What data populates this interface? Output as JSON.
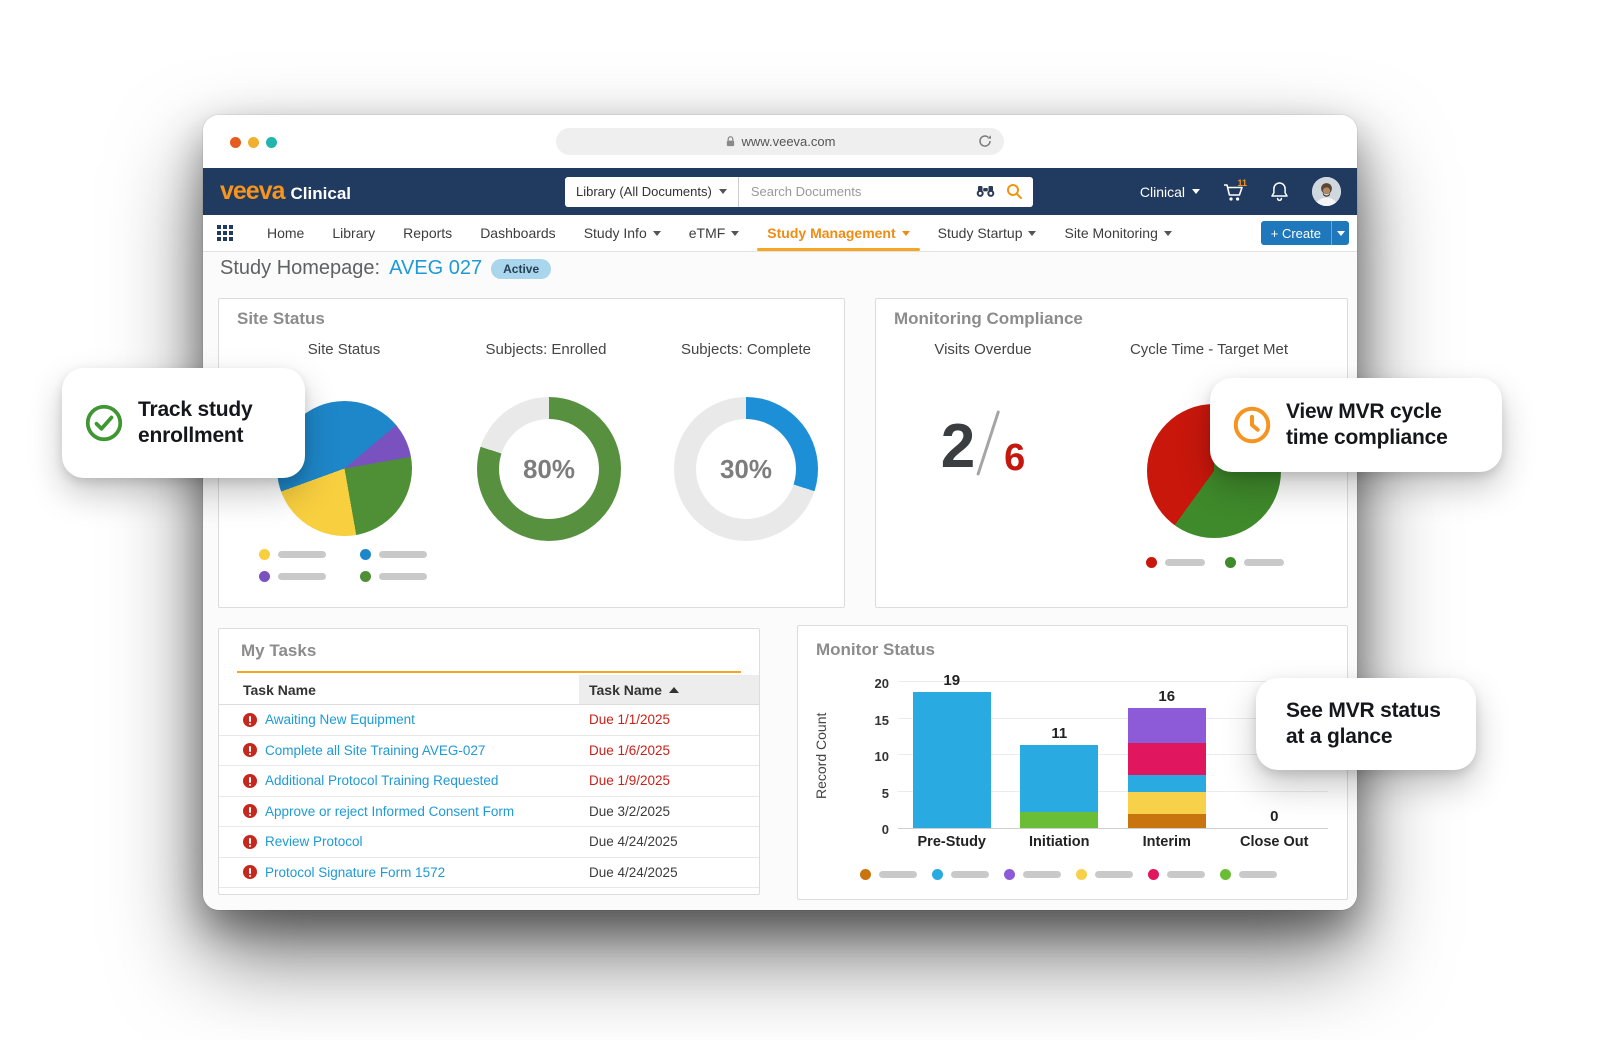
{
  "browser": {
    "url": "www.veeva.com"
  },
  "header": {
    "brand": {
      "name": "veeva",
      "suffix": "Clinical"
    },
    "search": {
      "scope": "Library (All Documents)",
      "placeholder": "Search Documents"
    },
    "profile_menu": "Clinical",
    "cart_count": "11"
  },
  "nav": {
    "items": [
      {
        "label": "Home",
        "dropdown": false,
        "active": false
      },
      {
        "label": "Library",
        "dropdown": false,
        "active": false
      },
      {
        "label": "Reports",
        "dropdown": false,
        "active": false
      },
      {
        "label": "Dashboards",
        "dropdown": false,
        "active": false
      },
      {
        "label": "Study Info",
        "dropdown": true,
        "active": false
      },
      {
        "label": "eTMF",
        "dropdown": true,
        "active": false
      },
      {
        "label": "Study Management",
        "dropdown": true,
        "active": true
      },
      {
        "label": "Study Startup",
        "dropdown": true,
        "active": false
      },
      {
        "label": "Site Monitoring",
        "dropdown": true,
        "active": false
      }
    ],
    "create_label": "+ Create"
  },
  "page": {
    "title": "Study Homepage:",
    "study_id": "AVEG 027",
    "status_badge": "Active"
  },
  "panels": {
    "site_status": {
      "title": "Site Status",
      "chart_labels": [
        "Site Status",
        "Subjects: Enrolled",
        "Subjects: Complete"
      ]
    },
    "monitoring_compliance": {
      "title": "Monitoring Compliance",
      "chart_labels": [
        "Visits Overdue",
        "Cycle Time - Target Met"
      ]
    },
    "my_tasks": {
      "title": "My Tasks",
      "columns": [
        "Task Name",
        "Task Name"
      ],
      "rows": [
        {
          "name": "Awaiting New Equipment",
          "due": "Due 1/1/2025",
          "overdue": true
        },
        {
          "name": "Complete all Site Training AVEG-027",
          "due": "Due 1/6/2025",
          "overdue": true
        },
        {
          "name": "Additional Protocol Training Requested",
          "due": "Due 1/9/2025",
          "overdue": true
        },
        {
          "name": "Approve or reject Informed Consent Form",
          "due": "Due 3/2/2025",
          "overdue": false
        },
        {
          "name": "Review Protocol",
          "due": "Due 4/24/2025",
          "overdue": false
        },
        {
          "name": "Protocol Signature Form 1572",
          "due": "Due 4/24/2025",
          "overdue": false
        }
      ]
    },
    "monitor_status": {
      "title": "Monitor Status"
    }
  },
  "chart_data": [
    {
      "id": "site-status-pie",
      "type": "pie",
      "title": "Site Status",
      "segments": [
        {
          "color": "#1e87c9",
          "deg": 50
        },
        {
          "color": "#7a52c0",
          "deg": 30
        },
        {
          "color": "#4f8f35",
          "deg": 90
        },
        {
          "color": "#f8cf3f",
          "deg": 80
        },
        {
          "color": "#1e87c9",
          "deg": 110
        }
      ],
      "legend_colors": [
        "#f8cf3f",
        "#1e87c9",
        "#7a52c0",
        "#4f8f35"
      ]
    },
    {
      "id": "subjects-enrolled",
      "type": "donut",
      "title": "Subjects: Enrolled",
      "percent": 80,
      "label": "80%",
      "color": "#579140",
      "track": "#e9e9e9"
    },
    {
      "id": "subjects-complete",
      "type": "donut",
      "title": "Subjects: Complete",
      "percent": 30,
      "label": "30%",
      "color": "#1d8fd6",
      "track": "#e9e9e9"
    },
    {
      "id": "visits-overdue",
      "type": "kpi",
      "title": "Visits Overdue",
      "value": "2",
      "total": "6"
    },
    {
      "id": "cycle-time",
      "type": "pie",
      "title": "Cycle Time - Target Met",
      "segments": [
        {
          "color": "#3f8a2b",
          "deg": 216
        },
        {
          "color": "#c9170c",
          "deg": 144
        }
      ],
      "legend_colors": [
        "#c9170c",
        "#3f8a2b"
      ]
    },
    {
      "id": "monitor-status",
      "type": "stacked-bar",
      "title": "Monitor Status",
      "ylabel": "Record Count",
      "yticks": [
        0,
        5,
        10,
        15,
        20
      ],
      "ymax": 20,
      "categories": [
        "Pre-Study",
        "Initiation",
        "Interim",
        "Close Out"
      ],
      "bars": [
        {
          "category": "Pre-Study",
          "total_label": "19",
          "segments": [
            {
              "color": "#29aae1",
              "value": 18.6
            }
          ]
        },
        {
          "category": "Initiation",
          "total_label": "11",
          "segments": [
            {
              "color": "#6abe35",
              "value": 2.2
            },
            {
              "color": "#29aae1",
              "value": 9.2
            }
          ]
        },
        {
          "category": "Interim",
          "total_label": "16",
          "segments": [
            {
              "color": "#c8740f",
              "value": 1.9
            },
            {
              "color": "#f7d14a",
              "value": 3.1
            },
            {
              "color": "#29aae1",
              "value": 2.3
            },
            {
              "color": "#e0175f",
              "value": 4.4
            },
            {
              "color": "#8d5bd8",
              "value": 4.8
            }
          ]
        },
        {
          "category": "Close Out",
          "total_label": "0",
          "segments": []
        }
      ],
      "legend_colors": [
        "#c8740f",
        "#29aae1",
        "#8d5bd8",
        "#f7d14a",
        "#e0175f",
        "#6abe35"
      ]
    }
  ],
  "callouts": [
    {
      "line1": "Track study",
      "line2": "enrollment",
      "icon": "check-circle"
    },
    {
      "line1": "View MVR cycle",
      "line2": "time compliance",
      "icon": "clock"
    },
    {
      "line1": "See MVR status",
      "line2": "at a glance",
      "icon": null
    }
  ],
  "icons": {
    "search": "magnifier",
    "advanced_search": "binoculars",
    "cart": "shopping-cart",
    "notifications": "bell",
    "apps": "grid",
    "url_lock": "padlock",
    "reload": "refresh",
    "task_flag": "exclamation-circle",
    "callout_1": "check-circle",
    "callout_2": "clock"
  },
  "colors": {
    "navy": "#213a5f",
    "brand_orange": "#f7941d",
    "active_nav": "#ef8c13",
    "link_blue": "#1e9ad6",
    "create_blue": "#1e78bb",
    "overdue_red": "#c9211a"
  }
}
